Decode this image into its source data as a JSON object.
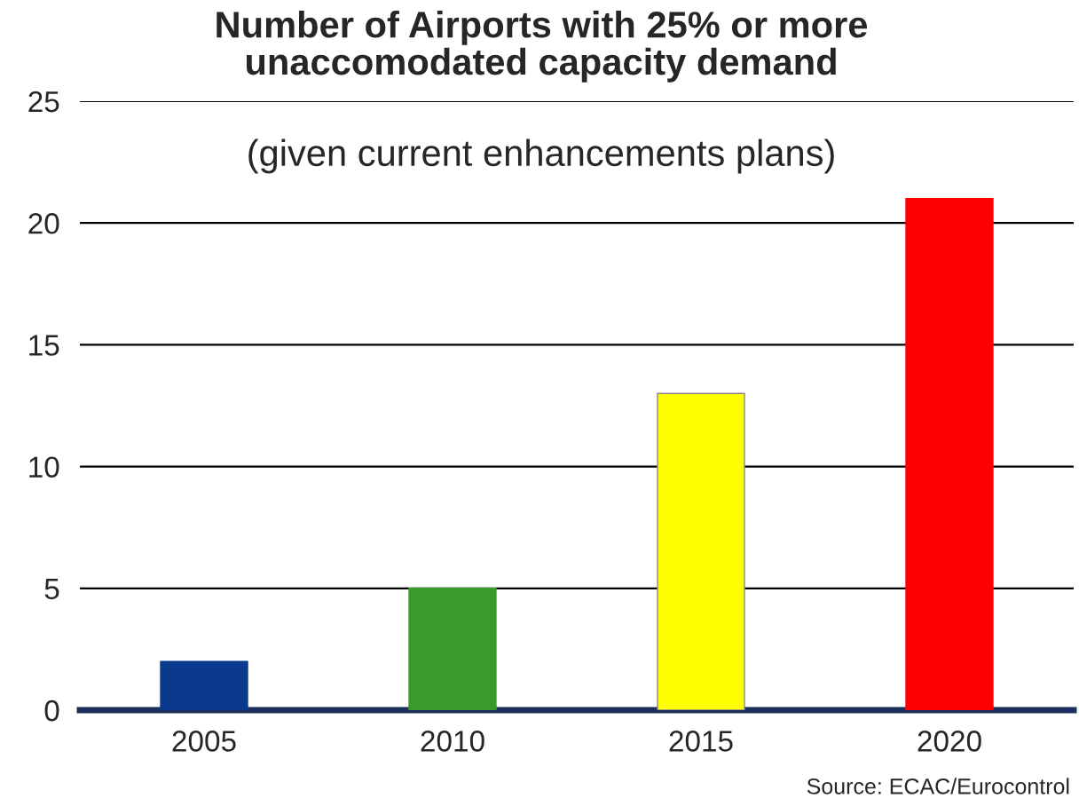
{
  "chart_data": {
    "type": "bar",
    "title": "Number of Airports with 25% or more\nunaccomodated capacity demand",
    "subtitle": "(given current enhancements plans)",
    "categories": [
      "2005",
      "2010",
      "2015",
      "2020"
    ],
    "values": [
      2,
      5,
      13,
      21
    ],
    "colors": [
      "#0b3a8c",
      "#3a9a2c",
      "#ffff00",
      "#ff0000"
    ],
    "ylim": [
      0,
      25
    ],
    "yticks": [
      0,
      5,
      10,
      15,
      20,
      25
    ],
    "grid": "y",
    "annotations": [
      "Source: ECAC/Eurocontrol"
    ]
  }
}
